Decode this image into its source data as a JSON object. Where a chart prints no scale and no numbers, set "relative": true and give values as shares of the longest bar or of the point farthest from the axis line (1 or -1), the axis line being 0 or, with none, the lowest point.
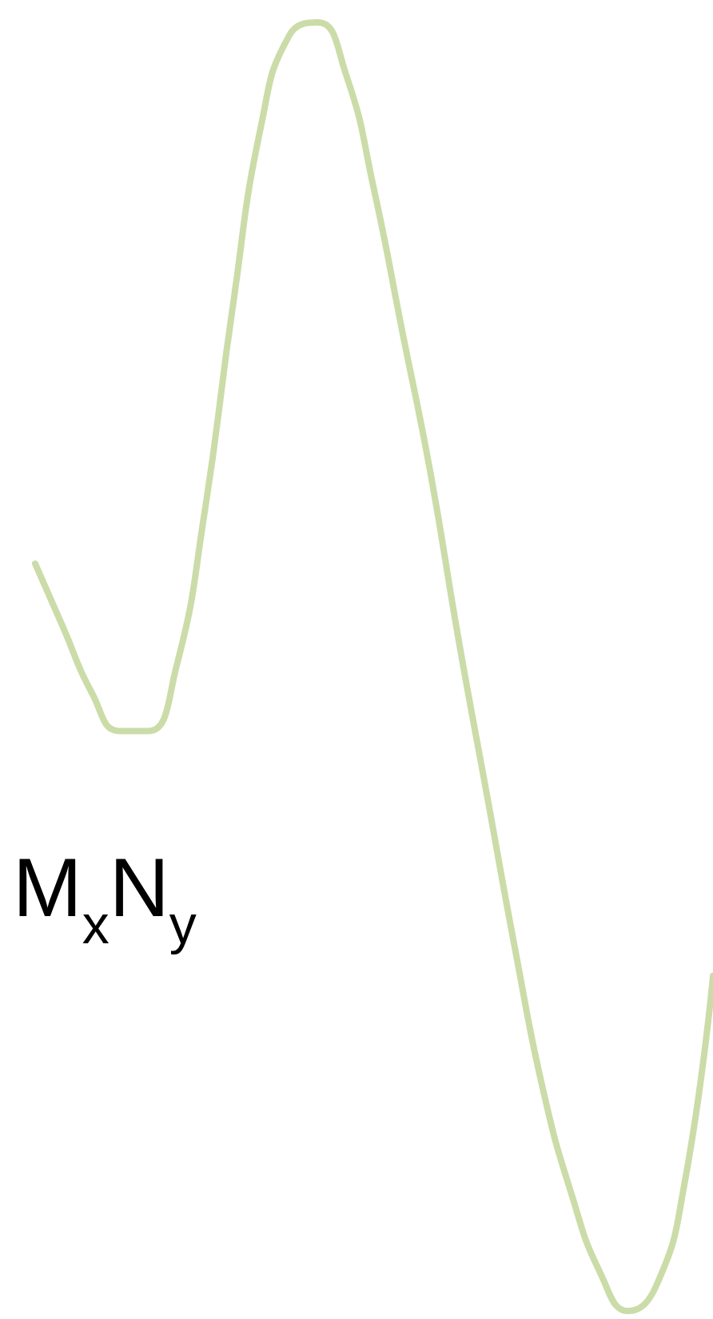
{
  "chart_data": {
    "type": "line",
    "relative": true,
    "categories": [
      null,
      null,
      null,
      null,
      null,
      null,
      null,
      null,
      null,
      null,
      null,
      null,
      null,
      null,
      null,
      null,
      null,
      null,
      null,
      null,
      null,
      null,
      null,
      null,
      null
    ],
    "series": [
      {
        "color": "#cbdca8",
        "values": [
          0.58,
          0.53,
          0.48,
          0.45,
          0.45,
          0.5,
          0.62,
          0.78,
          0.92,
          0.99,
          1.0,
          0.96,
          0.87,
          0.76,
          0.65,
          0.52,
          0.4,
          0.28,
          0.17,
          0.09,
          0.03,
          0,
          0.02,
          0.1,
          0.26
        ]
      }
    ],
    "annotations": [
      "M$_{x}$N$_{y}$"
    ],
    "marker": "none",
    "line_style": "solid"
  }
}
